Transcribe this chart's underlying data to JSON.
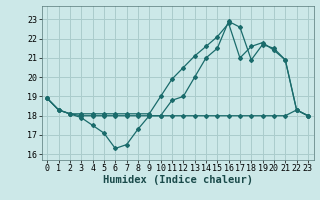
{
  "xlabel": "Humidex (Indice chaleur)",
  "xlim": [
    -0.5,
    23.5
  ],
  "ylim": [
    15.7,
    23.7
  ],
  "yticks": [
    16,
    17,
    18,
    19,
    20,
    21,
    22,
    23
  ],
  "xticks": [
    0,
    1,
    2,
    3,
    4,
    5,
    6,
    7,
    8,
    9,
    10,
    11,
    12,
    13,
    14,
    15,
    16,
    17,
    18,
    19,
    20,
    21,
    22,
    23
  ],
  "background_color": "#cce8e8",
  "grid_color": "#aacccc",
  "line_color": "#1a6b6b",
  "line1_x": [
    0,
    1,
    2,
    3,
    4,
    5,
    6,
    7,
    8,
    9,
    10,
    11,
    12,
    13,
    14,
    15,
    16,
    17,
    18,
    19,
    20,
    21,
    22,
    23
  ],
  "line1_y": [
    18.9,
    18.3,
    18.1,
    17.9,
    17.5,
    17.1,
    16.3,
    16.5,
    17.3,
    18.0,
    18.0,
    18.8,
    19.0,
    20.0,
    21.0,
    21.5,
    22.9,
    22.6,
    20.9,
    21.7,
    21.5,
    20.9,
    18.3,
    18.0
  ],
  "line2_x": [
    0,
    1,
    2,
    3,
    4,
    5,
    6,
    7,
    8,
    9,
    10,
    11,
    12,
    13,
    14,
    15,
    16,
    17,
    18,
    19,
    20,
    21,
    22,
    23
  ],
  "line2_y": [
    18.9,
    18.3,
    18.1,
    18.0,
    18.0,
    18.0,
    18.0,
    18.0,
    18.0,
    18.0,
    18.0,
    18.0,
    18.0,
    18.0,
    18.0,
    18.0,
    18.0,
    18.0,
    18.0,
    18.0,
    18.0,
    18.0,
    18.3,
    18.0
  ],
  "line3_x": [
    0,
    1,
    2,
    3,
    4,
    5,
    6,
    7,
    8,
    9,
    10,
    11,
    12,
    13,
    14,
    15,
    16,
    17,
    18,
    19,
    20,
    21,
    22,
    23
  ],
  "line3_y": [
    18.9,
    18.3,
    18.1,
    18.1,
    18.1,
    18.1,
    18.1,
    18.1,
    18.1,
    18.1,
    19.0,
    19.9,
    20.5,
    21.1,
    21.6,
    22.1,
    22.8,
    21.0,
    21.6,
    21.8,
    21.4,
    20.9,
    18.3,
    18.0
  ],
  "tick_fontsize": 6.0,
  "xlabel_fontsize": 7.5
}
